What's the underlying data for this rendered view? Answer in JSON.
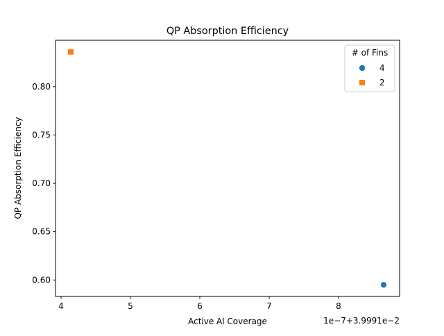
{
  "chart_data": {
    "type": "scatter",
    "title": "QP Absorption Efficiency",
    "xlabel": "Active Al Coverage",
    "ylabel": "QP Absorption Efficiency",
    "x_offset_label": "1e−7+3.9991e−2",
    "xlim": [
      3.92,
      8.88
    ],
    "ylim": [
      0.583,
      0.848
    ],
    "xticks": [
      {
        "value": 4,
        "label": "4"
      },
      {
        "value": 5,
        "label": "5"
      },
      {
        "value": 6,
        "label": "6"
      },
      {
        "value": 7,
        "label": "7"
      },
      {
        "value": 8,
        "label": "8"
      }
    ],
    "yticks": [
      {
        "value": 0.6,
        "label": "0.60"
      },
      {
        "value": 0.65,
        "label": "0.65"
      },
      {
        "value": 0.7,
        "label": "0.70"
      },
      {
        "value": 0.75,
        "label": "0.75"
      },
      {
        "value": 0.8,
        "label": "0.80"
      }
    ],
    "grid": false,
    "legend": {
      "title": "# of Fins",
      "placement": "top-right"
    },
    "series": [
      {
        "name": "4",
        "marker": "circle",
        "color": "#1f77b4",
        "points": [
          {
            "x": 8.65,
            "y": 0.595
          }
        ]
      },
      {
        "name": "2",
        "marker": "square",
        "color": "#ff7f0e",
        "points": [
          {
            "x": 4.14,
            "y": 0.836
          }
        ]
      }
    ]
  }
}
